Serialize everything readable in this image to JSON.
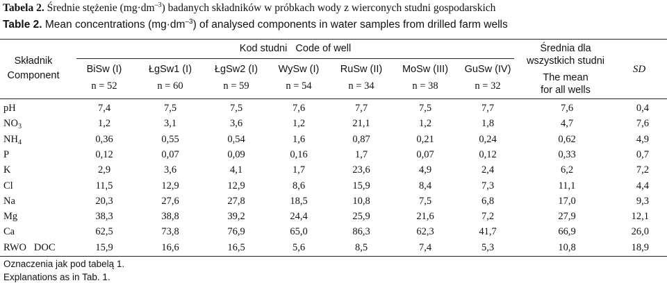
{
  "caption": {
    "pl_prefix": "Tabela 2.",
    "pl_text_a": " Średnie stężenie (mg·dm",
    "pl_exp": "–3",
    "pl_text_b": ") badanych składników w próbkach wody z wierconych studni gospodarskich",
    "en_prefix": "Table 2.",
    "en_text_a": " Mean concentrations (mg·dm",
    "en_exp": "–3",
    "en_text_b": ") of analysed components in water samples from drilled farm wells"
  },
  "header": {
    "component_pl": "Składnik",
    "component_en": "Component",
    "group_label": "Kod studni   Code of well",
    "wells": [
      {
        "name": "BiSw (I)",
        "n": "n = 52"
      },
      {
        "name": "ŁgSw1 (I)",
        "n": "n = 60"
      },
      {
        "name": "ŁgSw2 (I)",
        "n": "n = 59"
      },
      {
        "name": "WySw (I)",
        "n": "n = 54"
      },
      {
        "name": "RuSw (II)",
        "n": "n = 34"
      },
      {
        "name": "MoSw (III)",
        "n": "n = 38"
      },
      {
        "name": "GuSw (IV)",
        "n": "n = 32"
      }
    ],
    "mean_pl_1": "Średnia dla",
    "mean_pl_2": "wszystkich studni",
    "mean_en_1": "The mean",
    "mean_en_2": "for all wells",
    "sd": "SD"
  },
  "rows": [
    {
      "label": "pH",
      "sub": "",
      "values": [
        "7,4",
        "7,5",
        "7,5",
        "7,6",
        "7,7",
        "7,5",
        "7,7",
        "7,6",
        "0,4"
      ]
    },
    {
      "label": "NO",
      "sub": "3",
      "values": [
        "1,2",
        "3,1",
        "3,6",
        "1,2",
        "21,1",
        "1,2",
        "1,8",
        "4,7",
        "7,6"
      ]
    },
    {
      "label": "NH",
      "sub": "4",
      "values": [
        "0,36",
        "0,55",
        "0,54",
        "1,6",
        "0,87",
        "0,21",
        "0,24",
        "0,62",
        "4,9"
      ]
    },
    {
      "label": "P",
      "sub": "",
      "values": [
        "0,12",
        "0,07",
        "0,09",
        "0,16",
        "1,7",
        "0,07",
        "0,12",
        "0,33",
        "0,7"
      ]
    },
    {
      "label": "K",
      "sub": "",
      "values": [
        "2,9",
        "3,6",
        "4,1",
        "1,7",
        "23,6",
        "4,9",
        "2,4",
        "6,2",
        "7,2"
      ]
    },
    {
      "label": "Cl",
      "sub": "",
      "values": [
        "11,5",
        "12,9",
        "12,9",
        "8,6",
        "15,9",
        "8,4",
        "7,3",
        "11,1",
        "4,4"
      ]
    },
    {
      "label": "Na",
      "sub": "",
      "values": [
        "20,3",
        "27,6",
        "27,8",
        "18,5",
        "10,8",
        "7,5",
        "6,8",
        "17,0",
        "9,3"
      ]
    },
    {
      "label": "Mg",
      "sub": "",
      "values": [
        "38,3",
        "38,8",
        "39,2",
        "24,4",
        "25,9",
        "21,6",
        "7,2",
        "27,9",
        "12,1"
      ]
    },
    {
      "label": "Ca",
      "sub": "",
      "values": [
        "62,5",
        "73,8",
        "76,9",
        "65,0",
        "86,3",
        "62,3",
        "41,7",
        "66,9",
        "26,0"
      ]
    },
    {
      "label": "RWO   DOC",
      "sub": "",
      "values": [
        "15,9",
        "16,6",
        "16,5",
        "5,6",
        "8,5",
        "7,4",
        "5,3",
        "10,8",
        "18,9"
      ]
    }
  ],
  "footnote": {
    "pl": "Oznaczenia jak pod tabelą 1.",
    "en": "Explanations as in Tab. 1."
  }
}
